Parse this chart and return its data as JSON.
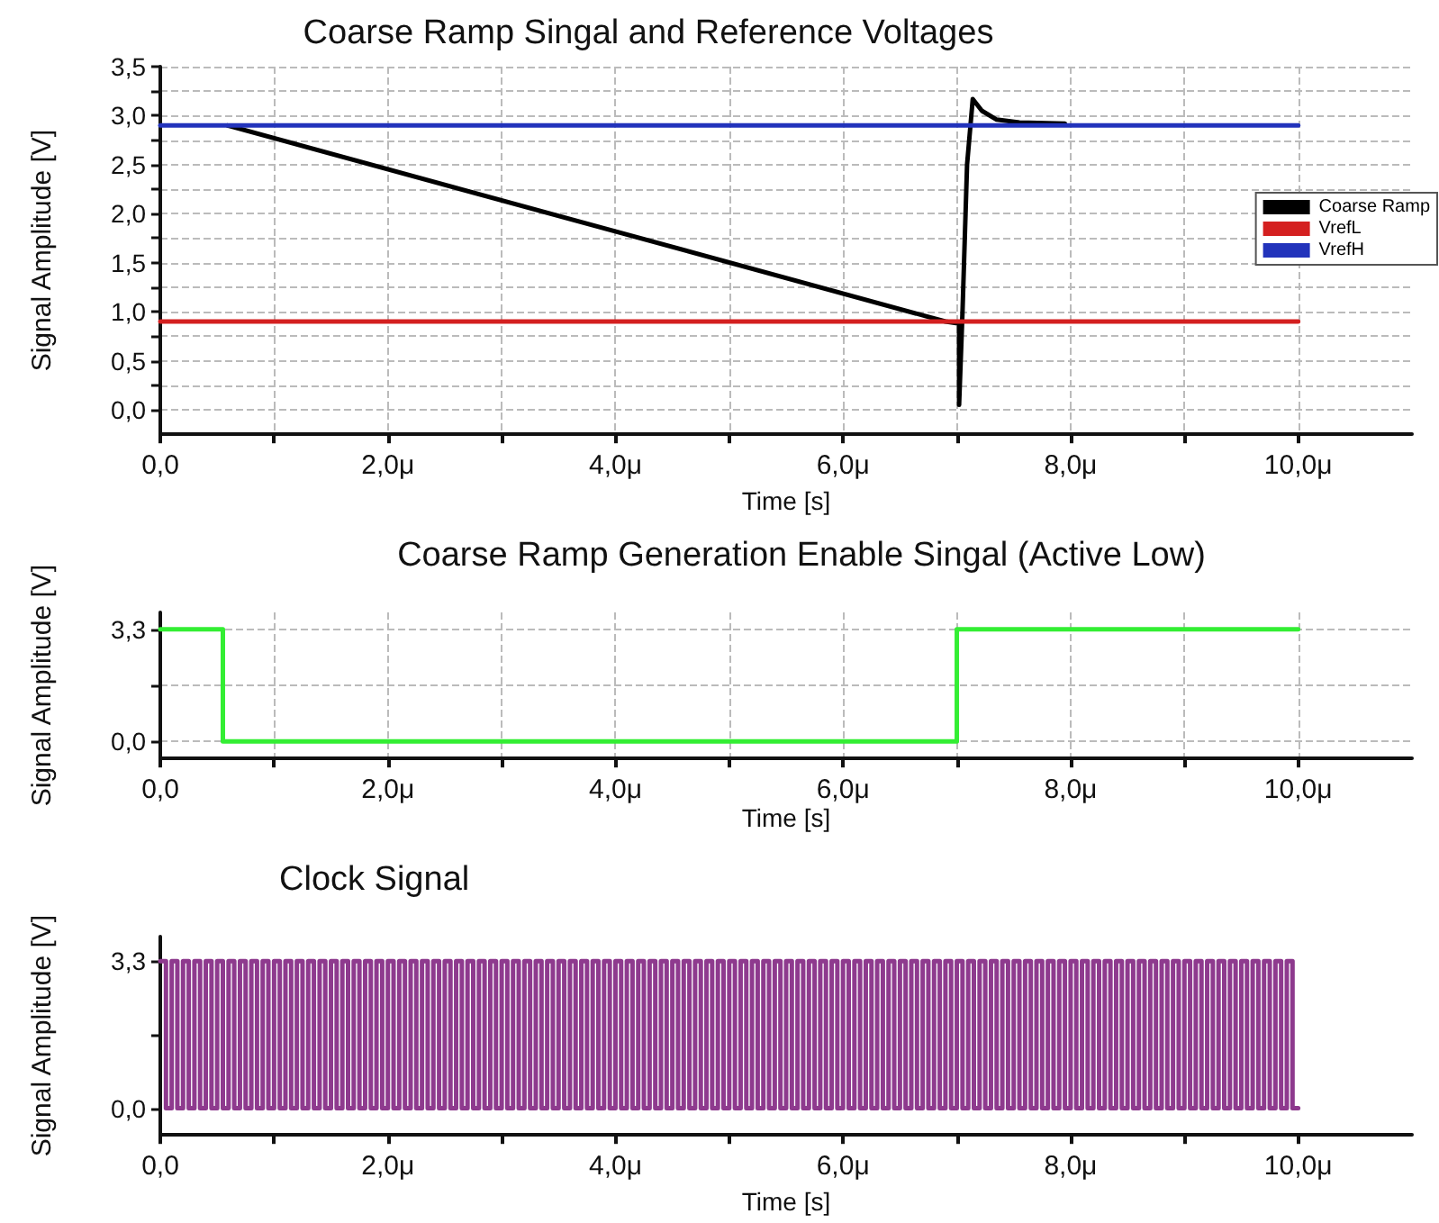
{
  "chart_data": [
    {
      "type": "line",
      "title": "Coarse Ramp Singal and Reference Voltages",
      "xlabel": "Time [s]",
      "ylabel": "Signal Amplitude [V]",
      "xlim": [
        0,
        11
      ],
      "xticks": [
        {
          "value": 0,
          "label": "0,0"
        },
        {
          "value": 1,
          "label": null
        },
        {
          "value": 2,
          "label": "2,0μ"
        },
        {
          "value": 3,
          "label": null
        },
        {
          "value": 4,
          "label": "4,0μ"
        },
        {
          "value": 5,
          "label": null
        },
        {
          "value": 6,
          "label": "6,0μ"
        },
        {
          "value": 7,
          "label": null
        },
        {
          "value": 8,
          "label": "8,0μ"
        },
        {
          "value": 9,
          "label": null
        },
        {
          "value": 10,
          "label": "10,0μ"
        }
      ],
      "ylim": [
        -0.25,
        3.5
      ],
      "yticks": [
        {
          "value": 0,
          "label": "0,0"
        },
        {
          "value": 0.25,
          "label": null
        },
        {
          "value": 0.5,
          "label": "0,5"
        },
        {
          "value": 0.75,
          "label": null
        },
        {
          "value": 1,
          "label": "1,0"
        },
        {
          "value": 1.25,
          "label": null
        },
        {
          "value": 1.5,
          "label": "1,5"
        },
        {
          "value": 1.75,
          "label": null
        },
        {
          "value": 2,
          "label": "2,0"
        },
        {
          "value": 2.25,
          "label": null
        },
        {
          "value": 2.5,
          "label": "2,5"
        },
        {
          "value": 2.75,
          "label": null
        },
        {
          "value": 3,
          "label": "3,0"
        },
        {
          "value": 3.25,
          "label": null
        },
        {
          "value": 3.5,
          "label": "3,5"
        }
      ],
      "grid": true,
      "legend": "top right",
      "marker": "none",
      "line_style": "solid",
      "series": [
        {
          "name": "Coarse Ramp",
          "color": "#000000",
          "x": [
            0.59,
            6.9,
            7.02,
            7.02,
            7.05,
            7.09,
            7.14,
            7.22,
            7.35,
            7.55,
            7.95
          ],
          "values": [
            2.9,
            0.9,
            0.88,
            0.05,
            1.0,
            2.5,
            3.17,
            3.05,
            2.96,
            2.93,
            2.92
          ]
        },
        {
          "name": "VrefL",
          "color": "#d42020",
          "x": [
            0,
            10
          ],
          "values": [
            0.9,
            0.9
          ]
        },
        {
          "name": "VrefH",
          "color": "#2233bb",
          "x": [
            0,
            10
          ],
          "values": [
            2.9,
            2.9
          ]
        }
      ]
    },
    {
      "type": "step",
      "title": "Coarse Ramp Generation Enable Singal (Active Low)",
      "xlabel": "Time [s]",
      "ylabel": "Signal Amplitude [V]",
      "xlim": [
        0,
        11
      ],
      "xticks": [
        {
          "value": 0,
          "label": "0,0"
        },
        {
          "value": 1,
          "label": null
        },
        {
          "value": 2,
          "label": "2,0μ"
        },
        {
          "value": 3,
          "label": null
        },
        {
          "value": 4,
          "label": "4,0μ"
        },
        {
          "value": 5,
          "label": null
        },
        {
          "value": 6,
          "label": "6,0μ"
        },
        {
          "value": 7,
          "label": null
        },
        {
          "value": 8,
          "label": "8,0μ"
        },
        {
          "value": 9,
          "label": null
        },
        {
          "value": 10,
          "label": "10,0μ"
        }
      ],
      "ylim": [
        -0.5,
        3.8
      ],
      "yticks": [
        {
          "value": 0,
          "label": "0,0"
        },
        {
          "value": 1.65,
          "label": null
        },
        {
          "value": 3.3,
          "label": "3,3"
        }
      ],
      "grid": true,
      "marker": "none",
      "line_style": "solid",
      "series": [
        {
          "color": "#33ee33",
          "x": [
            0,
            0.55,
            7.0,
            10
          ],
          "values": [
            3.3,
            0,
            3.3,
            3.3
          ]
        }
      ]
    },
    {
      "type": "step",
      "title": "Clock Signal",
      "xlabel": "Time [s]",
      "ylabel": "Signal Amplitude [V]",
      "xlim": [
        0,
        11
      ],
      "xticks": [
        {
          "value": 0,
          "label": "0,0"
        },
        {
          "value": 1,
          "label": null
        },
        {
          "value": 2,
          "label": "2,0μ"
        },
        {
          "value": 3,
          "label": null
        },
        {
          "value": 4,
          "label": "4,0μ"
        },
        {
          "value": 5,
          "label": null
        },
        {
          "value": 6,
          "label": "6,0μ"
        },
        {
          "value": 7,
          "label": null
        },
        {
          "value": 8,
          "label": "8,0μ"
        },
        {
          "value": 9,
          "label": null
        },
        {
          "value": 10,
          "label": "10,0μ"
        }
      ],
      "ylim": [
        -0.6,
        3.85
      ],
      "yticks": [
        {
          "value": 0,
          "label": "0,0"
        },
        {
          "value": 1.65,
          "label": null
        },
        {
          "value": 3.3,
          "label": "3,3"
        }
      ],
      "grid": false,
      "marker": "none",
      "line_style": "solid",
      "series": [
        {
          "color": "#8e3a8e",
          "x": [
            0,
            0.05,
            0.1,
            0.15,
            0.2,
            0.25,
            0.3,
            0.35,
            0.4,
            0.45,
            0.5,
            0.55,
            0.6,
            0.65,
            0.7,
            0.75,
            0.8,
            0.85,
            0.9,
            0.95,
            1,
            1.05,
            1.1,
            1.15,
            1.2,
            1.25,
            1.3,
            1.35,
            1.4,
            1.45,
            1.5,
            1.55,
            1.6,
            1.65,
            1.7,
            1.75,
            1.8,
            1.85,
            1.9,
            1.95,
            2,
            2.05,
            2.1,
            2.15,
            2.2,
            2.25,
            2.3,
            2.35,
            2.4,
            2.45,
            2.5,
            2.55,
            2.6,
            2.65,
            2.7,
            2.75,
            2.8,
            2.85,
            2.9,
            2.95,
            3,
            3.05,
            3.1,
            3.15,
            3.2,
            3.25,
            3.3,
            3.35,
            3.4,
            3.45,
            3.5,
            3.55,
            3.6,
            3.65,
            3.7,
            3.75,
            3.8,
            3.85,
            3.9,
            3.95,
            4,
            4.05,
            4.1,
            4.15,
            4.2,
            4.25,
            4.3,
            4.35,
            4.4,
            4.45,
            4.5,
            4.55,
            4.6,
            4.65,
            4.7,
            4.75,
            4.8,
            4.85,
            4.9,
            4.95,
            5,
            5.05,
            5.1,
            5.15,
            5.2,
            5.25,
            5.3,
            5.35,
            5.4,
            5.45,
            5.5,
            5.55,
            5.6,
            5.65,
            5.7,
            5.75,
            5.8,
            5.85,
            5.9,
            5.95,
            6,
            6.05,
            6.1,
            6.15,
            6.2,
            6.25,
            6.3,
            6.35,
            6.4,
            6.45,
            6.5,
            6.55,
            6.6,
            6.65,
            6.7,
            6.75,
            6.8,
            6.85,
            6.9,
            6.95,
            7,
            7.05,
            7.1,
            7.15,
            7.2,
            7.25,
            7.3,
            7.35,
            7.4,
            7.45,
            7.5,
            7.55,
            7.6,
            7.65,
            7.7,
            7.75,
            7.8,
            7.85,
            7.9,
            7.95,
            8,
            8.05,
            8.1,
            8.15,
            8.2,
            8.25,
            8.3,
            8.35,
            8.4,
            8.45,
            8.5,
            8.55,
            8.6,
            8.65,
            8.7,
            8.75,
            8.8,
            8.85,
            8.9,
            8.95,
            9,
            9.05,
            9.1,
            9.15,
            9.2,
            9.25,
            9.3,
            9.35,
            9.4,
            9.45,
            9.5,
            9.55,
            9.6,
            9.65,
            9.7,
            9.75,
            9.8,
            9.85,
            9.9,
            9.95,
            10
          ],
          "values": [
            3.3,
            0,
            3.3,
            0,
            3.3,
            0,
            3.3,
            0,
            3.3,
            0,
            3.3,
            0,
            3.3,
            0,
            3.3,
            0,
            3.3,
            0,
            3.3,
            0,
            3.3,
            0,
            3.3,
            0,
            3.3,
            0,
            3.3,
            0,
            3.3,
            0,
            3.3,
            0,
            3.3,
            0,
            3.3,
            0,
            3.3,
            0,
            3.3,
            0,
            3.3,
            0,
            3.3,
            0,
            3.3,
            0,
            3.3,
            0,
            3.3,
            0,
            3.3,
            0,
            3.3,
            0,
            3.3,
            0,
            3.3,
            0,
            3.3,
            0,
            3.3,
            0,
            3.3,
            0,
            3.3,
            0,
            3.3,
            0,
            3.3,
            0,
            3.3,
            0,
            3.3,
            0,
            3.3,
            0,
            3.3,
            0,
            3.3,
            0,
            3.3,
            0,
            3.3,
            0,
            3.3,
            0,
            3.3,
            0,
            3.3,
            0,
            3.3,
            0,
            3.3,
            0,
            3.3,
            0,
            3.3,
            0,
            3.3,
            0,
            3.3,
            0,
            3.3,
            0,
            3.3,
            0,
            3.3,
            0,
            3.3,
            0,
            3.3,
            0,
            3.3,
            0,
            3.3,
            0,
            3.3,
            0,
            3.3,
            0,
            3.3,
            0,
            3.3,
            0,
            3.3,
            0,
            3.3,
            0,
            3.3,
            0,
            3.3,
            0,
            3.3,
            0,
            3.3,
            0,
            3.3,
            0,
            3.3,
            0,
            3.3,
            0,
            3.3,
            0,
            3.3,
            0,
            3.3,
            0,
            3.3,
            0,
            3.3,
            0,
            3.3,
            0,
            3.3,
            0,
            3.3,
            0,
            3.3,
            0,
            3.3,
            0,
            3.3,
            0,
            3.3,
            0,
            3.3,
            0,
            3.3,
            0,
            3.3,
            0,
            3.3,
            0,
            3.3,
            0,
            3.3,
            0,
            3.3,
            0,
            3.3,
            0,
            3.3,
            0,
            3.3,
            0,
            3.3,
            0,
            3.3,
            0,
            3.3,
            0,
            3.3,
            0,
            3.3,
            0,
            3.3,
            0,
            3.3,
            0,
            0
          ]
        }
      ]
    }
  ]
}
